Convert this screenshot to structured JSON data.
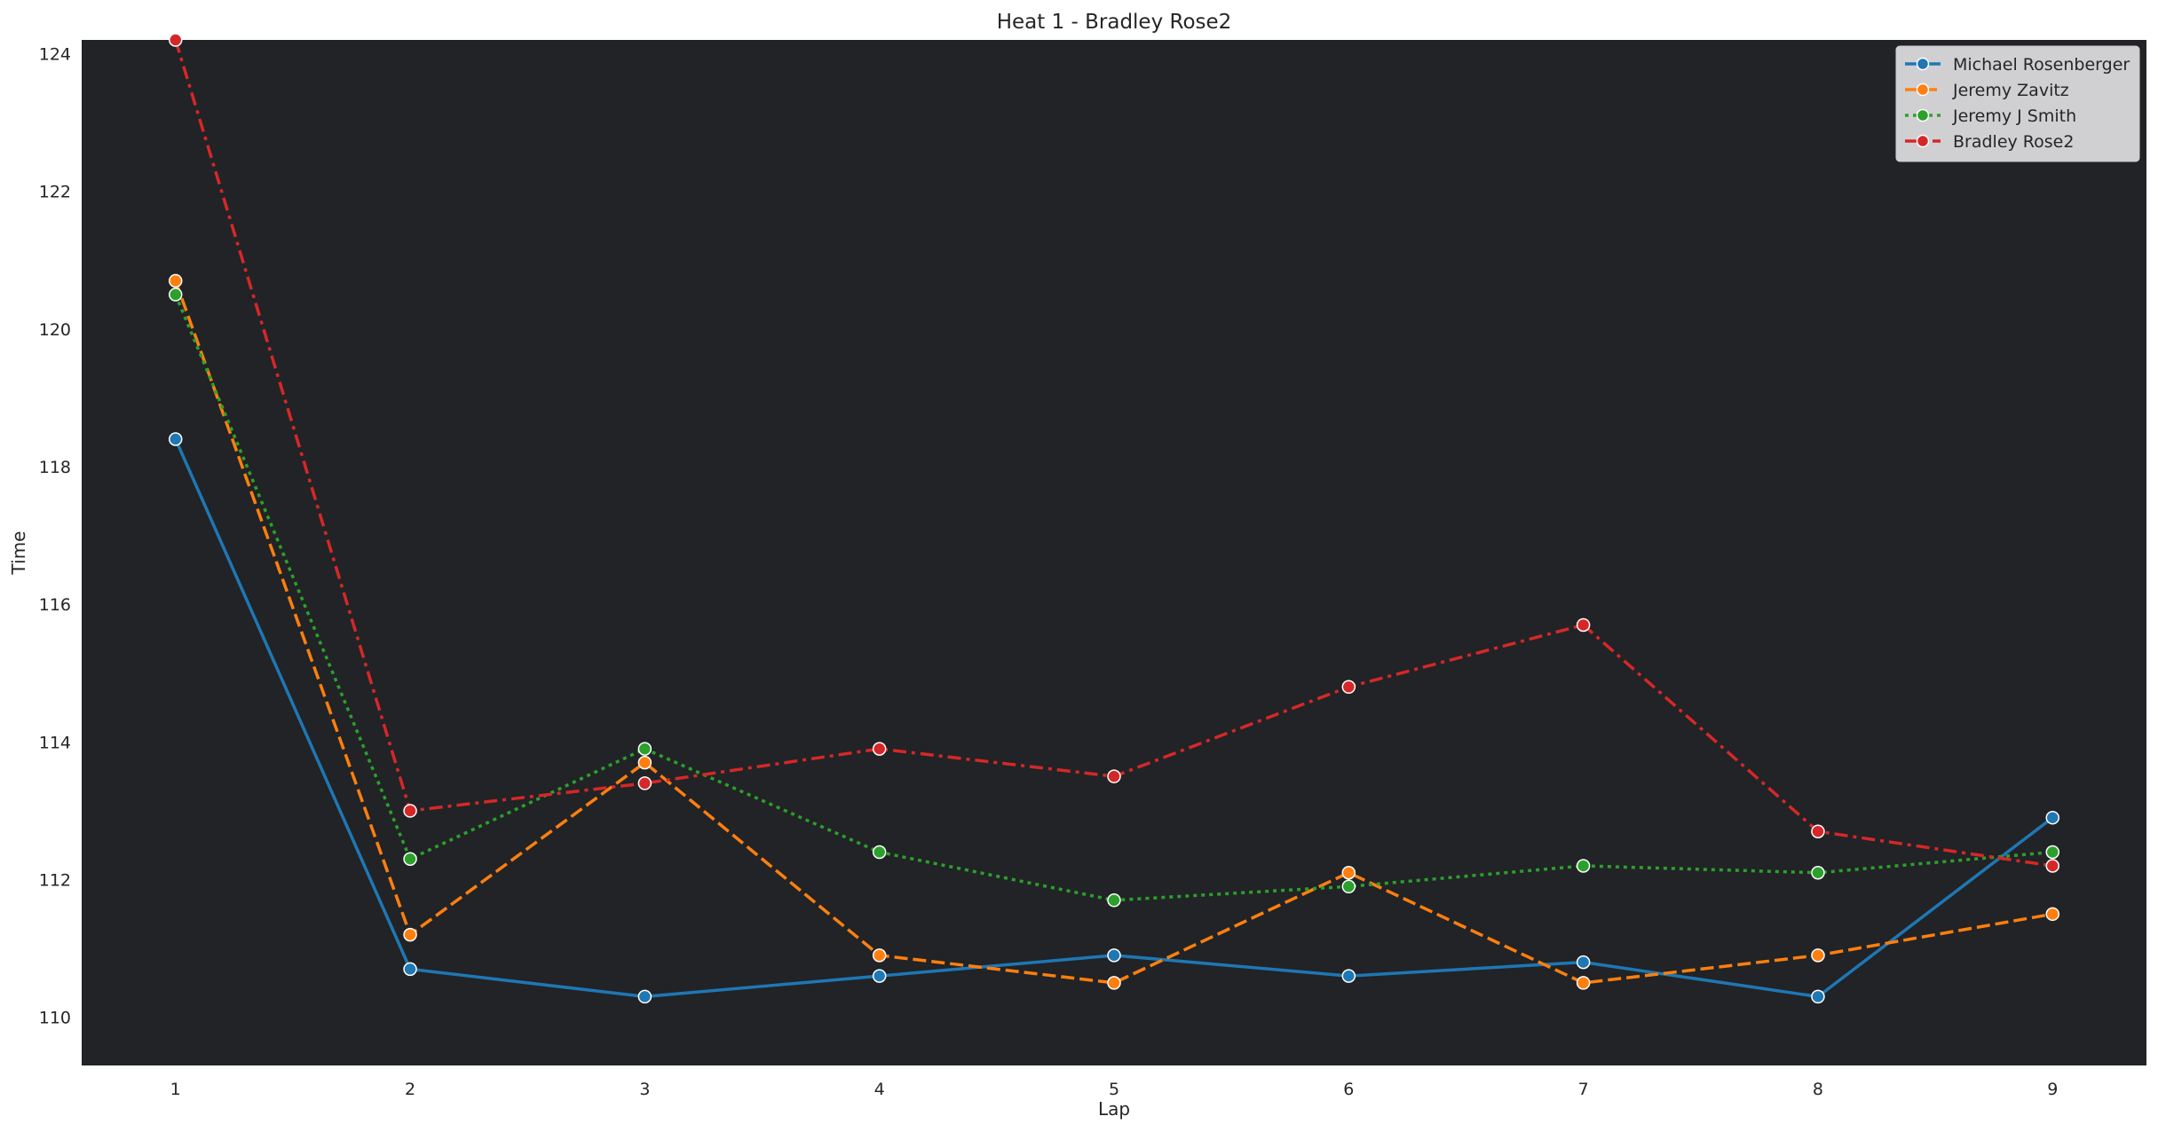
{
  "chart_data": {
    "type": "line",
    "title": "Heat 1 - Bradley Rose2",
    "xlabel": "Lap",
    "ylabel": "Time",
    "x": [
      1,
      2,
      3,
      4,
      5,
      6,
      7,
      8,
      9
    ],
    "xlim": [
      0.6,
      9.4
    ],
    "ylim": [
      109.3,
      124.2
    ],
    "yticks": [
      110,
      112,
      114,
      116,
      118,
      120,
      122,
      124
    ],
    "grid": false,
    "plot_background": "#212326",
    "legend_position": "top-right",
    "series": [
      {
        "name": "Michael Rosenberger",
        "color": "#1f77b4",
        "linestyle": "solid",
        "values": [
          118.4,
          110.7,
          110.3,
          110.6,
          110.9,
          110.6,
          110.8,
          110.3,
          112.9
        ]
      },
      {
        "name": "Jeremy Zavitz",
        "color": "#ff7f0e",
        "linestyle": "dashed",
        "values": [
          120.7,
          111.2,
          113.7,
          110.9,
          110.5,
          112.1,
          110.5,
          110.9,
          111.5
        ]
      },
      {
        "name": "Jeremy J Smith",
        "color": "#2ca02c",
        "linestyle": "dotted",
        "values": [
          120.5,
          112.3,
          113.9,
          112.4,
          111.7,
          111.9,
          112.2,
          112.1,
          112.4
        ]
      },
      {
        "name": "Bradley Rose2",
        "color": "#d62728",
        "linestyle": "dashdot",
        "values": [
          124.2,
          113.0,
          113.4,
          113.9,
          113.5,
          114.8,
          115.7,
          112.7,
          112.2
        ]
      }
    ]
  }
}
